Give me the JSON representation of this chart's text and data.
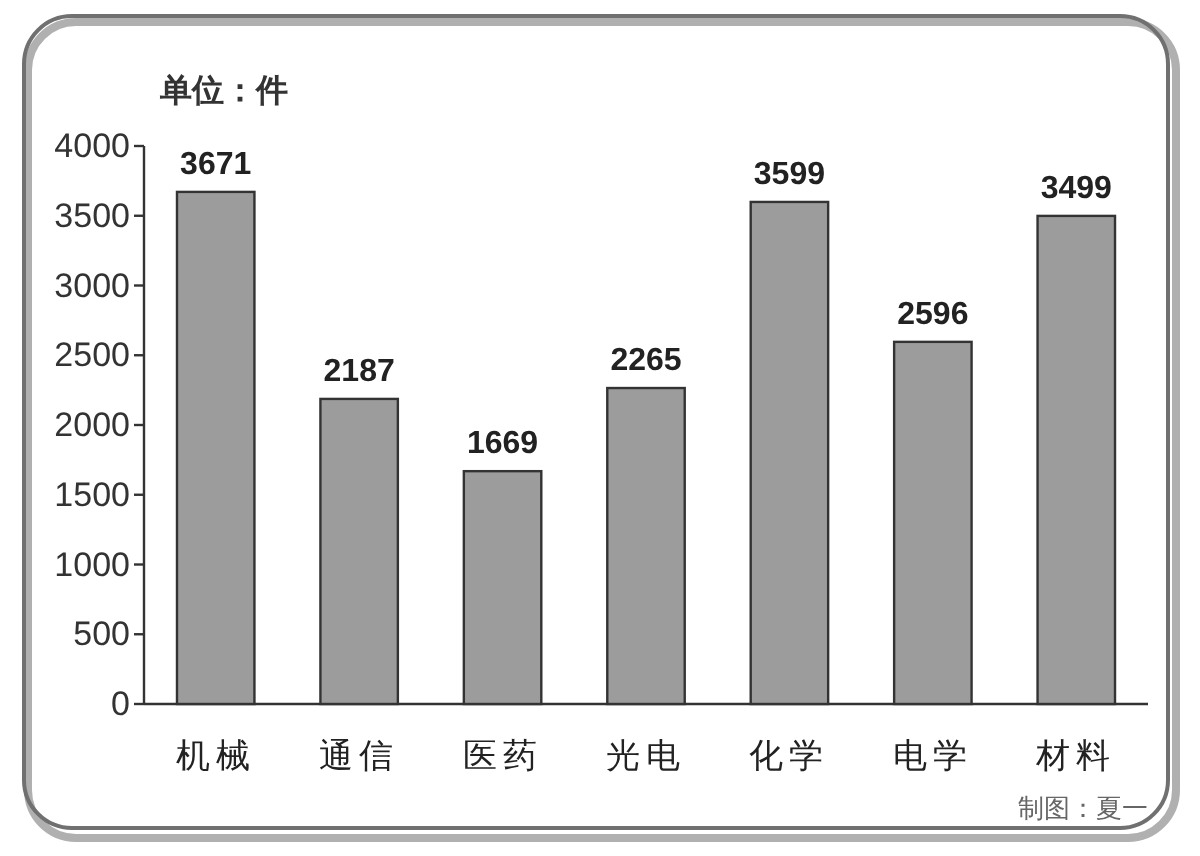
{
  "chart_data": {
    "type": "bar",
    "ylabel": "单位：件",
    "categories": [
      "机械",
      "通信",
      "医药",
      "光电",
      "化学",
      "电学",
      "材料"
    ],
    "values": [
      3671,
      2187,
      1669,
      2265,
      3599,
      2596,
      3499
    ],
    "color": "#9c9c9c",
    "ylim": [
      0,
      4000
    ],
    "yticks": [
      0,
      500,
      1000,
      1500,
      2000,
      2500,
      3000,
      3500,
      4000
    ],
    "data_labels": true,
    "annotations": [
      "制图：夏一"
    ]
  }
}
